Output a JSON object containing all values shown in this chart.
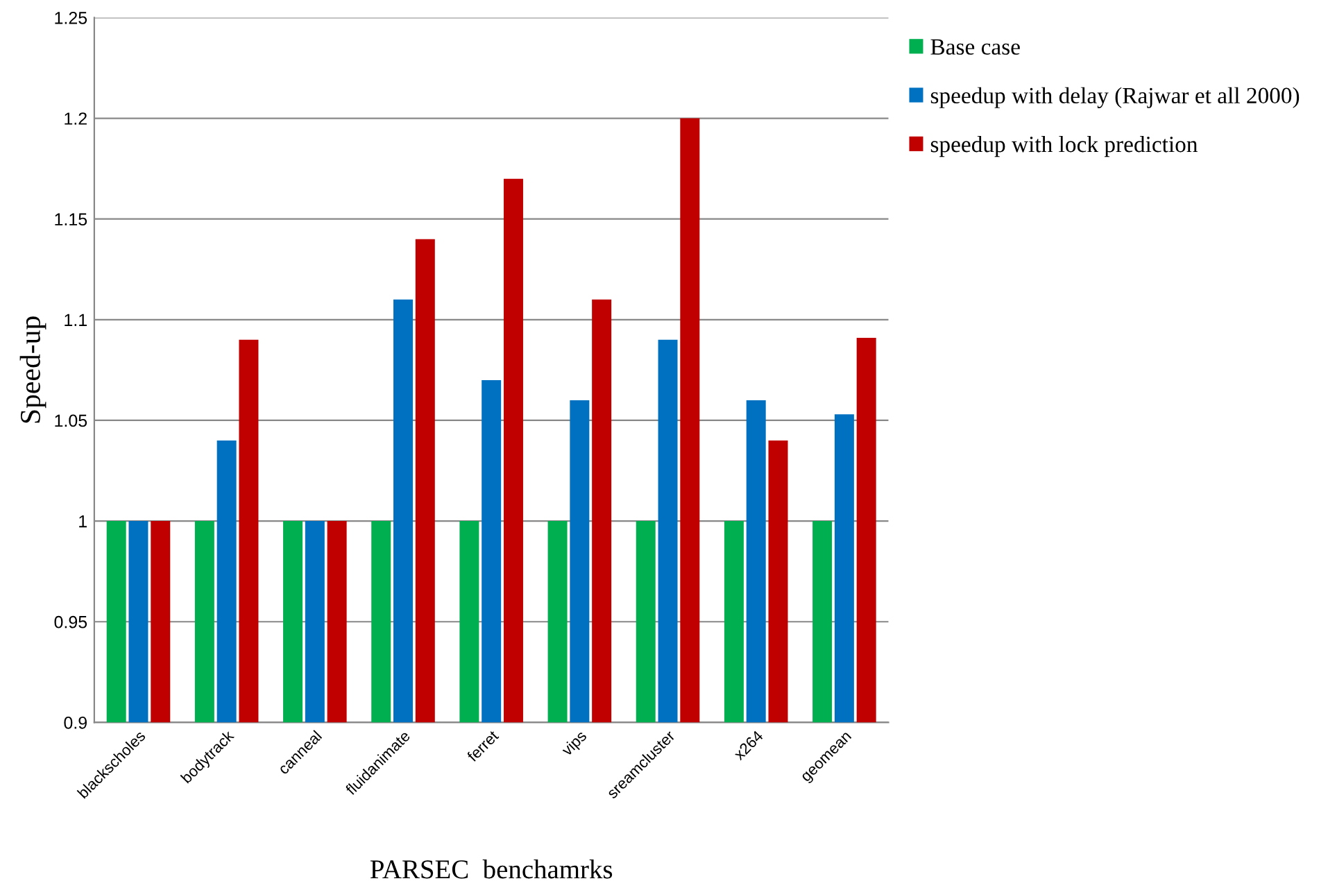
{
  "chart_data": {
    "type": "bar",
    "xlabel": "PARSEC  benchamrks",
    "ylabel": "Speed-up",
    "categories": [
      "blackscholes",
      "bodytrack",
      "canneal",
      "fluidanimate",
      "ferret",
      "vips",
      "sreamcluster",
      "x264",
      "geomean"
    ],
    "series": [
      {
        "name": "Base case",
        "color": "#00b050",
        "values": [
          1,
          1,
          1,
          1,
          1,
          1,
          1,
          1,
          1
        ]
      },
      {
        "name": "speedup with delay (Rajwar et all 2000)",
        "color": "#0070c0",
        "values": [
          1,
          1.04,
          1,
          1.11,
          1.07,
          1.06,
          1.09,
          1.06,
          1.053
        ]
      },
      {
        "name": "speedup with lock prediction",
        "color": "#c00000",
        "values": [
          1,
          1.09,
          1,
          1.14,
          1.17,
          1.11,
          1.2,
          1.04,
          1.091
        ]
      }
    ],
    "ylim": [
      0.9,
      1.25
    ],
    "yticks": [
      0.9,
      0.95,
      1,
      1.05,
      1.1,
      1.15,
      1.2,
      1.25
    ],
    "grid": "y",
    "legend": "right"
  }
}
